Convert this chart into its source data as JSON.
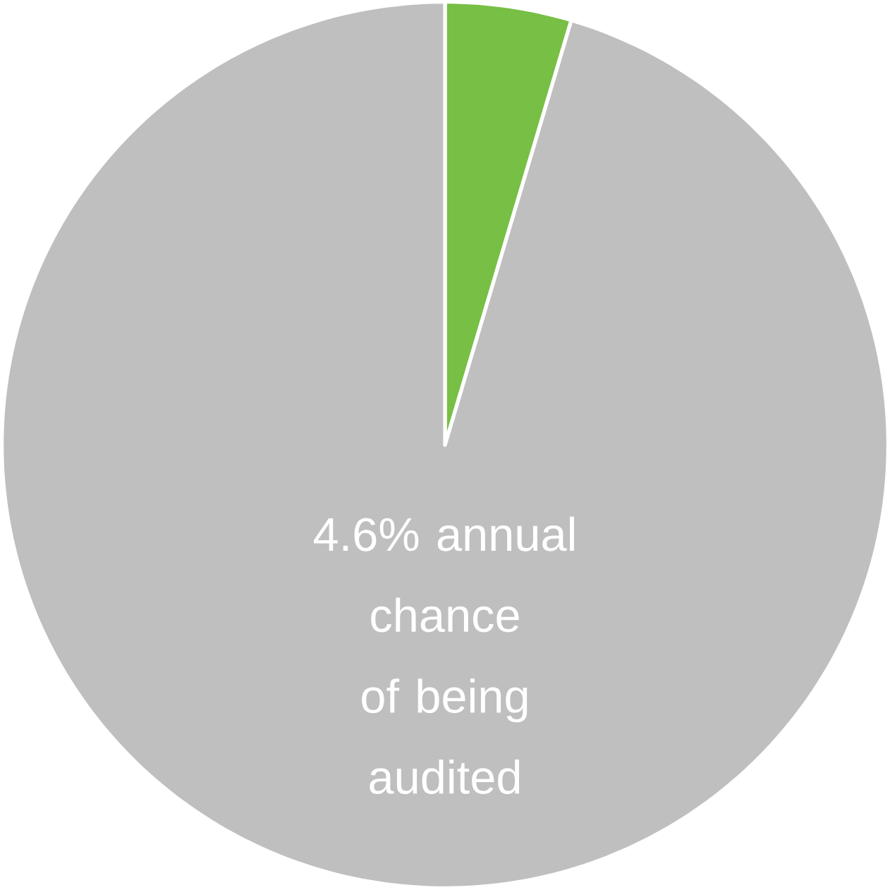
{
  "chart_data": {
    "type": "pie",
    "categories": [
      null,
      null
    ],
    "values": [
      4.6,
      95.4
    ],
    "colors": [
      "#77bf45",
      "#bfbfbf"
    ],
    "annotations": [
      "4.6% annual chance of being audited"
    ]
  }
}
